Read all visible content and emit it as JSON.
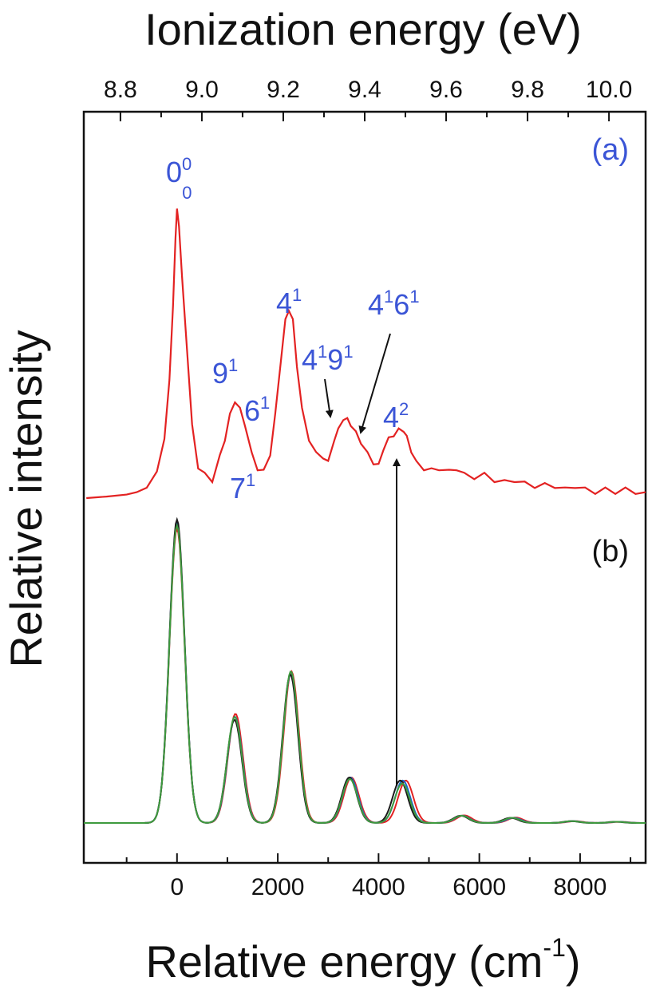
{
  "chart_data": {
    "type": "line",
    "x_axis_bottom": {
      "label": "Relative energy (cm",
      "label_sup": "-1",
      "label_close": ")",
      "range": [
        -1850,
        9300
      ],
      "ticks": [
        "0",
        "2000",
        "4000",
        "6000",
        "8000"
      ]
    },
    "x_axis_top": {
      "label": "Ionization energy (eV)",
      "range": [
        8.71,
        10.09
      ],
      "ticks": [
        "8.8",
        "9.0",
        "9.2",
        "9.4",
        "9.6",
        "9.8",
        "10.0"
      ]
    },
    "y_axis": {
      "label": "Relative intensity"
    },
    "panels": [
      {
        "label": "(a)",
        "series": [
          {
            "color": "#e32222",
            "x": [
              -1800,
              -1400,
              -1000,
              -800,
              -600,
              -400,
              -250,
              -150,
              -80,
              -30,
              0,
              40,
              100,
              200,
              300,
              420,
              550,
              700,
              850,
              950,
              1050,
              1150,
              1250,
              1350,
              1480,
              1600,
              1720,
              1850,
              1950,
              2050,
              2150,
              2220,
              2300,
              2380,
              2480,
              2620,
              2760,
              2900,
              3000,
              3120,
              3200,
              3300,
              3380,
              3450,
              3550,
              3650,
              3780,
              3900,
              4000,
              4100,
              4200,
              4300,
              4400,
              4500,
              4560,
              4650,
              4750,
              4900,
              5050,
              5200,
              5400,
              5550,
              5700,
              5900,
              6100,
              6300,
              6500,
              6700,
              6900,
              7100,
              7300,
              7500,
              7700,
              7900,
              8100,
              8300,
              8500,
              8700,
              8900,
              9100,
              9300
            ],
            "y": [
              0.0,
              0.005,
              0.012,
              0.02,
              0.035,
              0.09,
              0.2,
              0.4,
              0.65,
              0.88,
              0.98,
              0.92,
              0.75,
              0.5,
              0.25,
              0.1,
              0.08,
              0.06,
              0.14,
              0.2,
              0.28,
              0.33,
              0.3,
              0.25,
              0.15,
              0.1,
              0.09,
              0.15,
              0.28,
              0.45,
              0.6,
              0.64,
              0.6,
              0.45,
              0.3,
              0.2,
              0.15,
              0.14,
              0.12,
              0.2,
              0.23,
              0.27,
              0.265,
              0.25,
              0.22,
              0.19,
              0.15,
              0.12,
              0.11,
              0.17,
              0.2,
              0.215,
              0.23,
              0.23,
              0.205,
              0.16,
              0.12,
              0.1,
              0.095,
              0.1,
              0.09,
              0.1,
              0.08,
              0.07,
              0.08,
              0.06,
              0.055,
              0.06,
              0.05,
              0.04,
              0.045,
              0.04,
              0.03,
              0.04,
              0.03,
              0.02,
              0.03,
              0.02,
              0.03,
              0.02,
              0.02
            ]
          }
        ]
      },
      {
        "label": "(b)",
        "series": [
          {
            "color": "#e32222",
            "peaks": [
              [
                0,
                0.97
              ],
              [
                1160,
                0.36
              ],
              [
                2270,
                0.5
              ],
              [
                3460,
                0.15
              ],
              [
                4540,
                0.14
              ],
              [
                5700,
                0.025
              ],
              [
                6720,
                0.018
              ],
              [
                7900,
                0.006
              ],
              [
                8800,
                0.004
              ]
            ]
          },
          {
            "color": "#1b66c9",
            "peaks": [
              [
                0,
                0.99
              ],
              [
                1150,
                0.35
              ],
              [
                2255,
                0.49
              ],
              [
                3440,
                0.15
              ],
              [
                4480,
                0.14
              ],
              [
                5660,
                0.024
              ],
              [
                6680,
                0.017
              ],
              [
                7860,
                0.006
              ],
              [
                8760,
                0.004
              ]
            ]
          },
          {
            "color": "#1a1a1a",
            "peaks": [
              [
                0,
                1.0
              ],
              [
                1140,
                0.34
              ],
              [
                2250,
                0.49
              ],
              [
                3420,
                0.15
              ],
              [
                4430,
                0.14
              ],
              [
                5630,
                0.024
              ],
              [
                6620,
                0.017
              ],
              [
                7820,
                0.006
              ],
              [
                8700,
                0.004
              ]
            ]
          },
          {
            "color": "#3e9a3e",
            "peaks": [
              [
                0,
                0.98
              ],
              [
                1145,
                0.35
              ],
              [
                2260,
                0.5
              ],
              [
                3430,
                0.145
              ],
              [
                4470,
                0.13
              ],
              [
                5650,
                0.024
              ],
              [
                6650,
                0.017
              ],
              [
                7840,
                0.006
              ],
              [
                8730,
                0.004
              ]
            ]
          }
        ]
      }
    ],
    "annotations": [
      {
        "base": "0",
        "sup": "0",
        "sub": "0"
      },
      {
        "base": "9",
        "sup": "1"
      },
      {
        "base": "6",
        "sup": "1"
      },
      {
        "base": "7",
        "sup": "1"
      },
      {
        "base": "4",
        "sup": "1"
      },
      {
        "base": "4",
        "sup": "1",
        "base2": "9",
        "sup2": "1"
      },
      {
        "base": "4",
        "sup": "1",
        "base2": "6",
        "sup2": "1"
      },
      {
        "base": "4",
        "sup": "2"
      }
    ],
    "colors": {
      "label": "#3b55d6",
      "axes": "#111111"
    },
    "grid": false
  }
}
